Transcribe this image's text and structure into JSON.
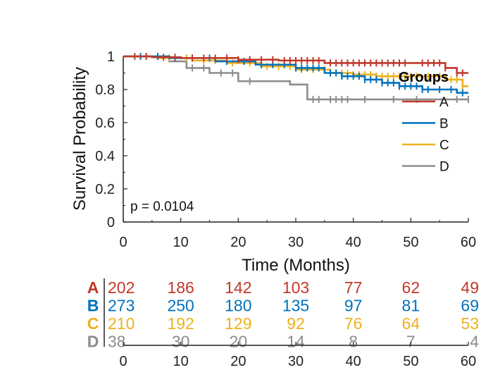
{
  "chart_data": {
    "type": "line",
    "subtype": "kaplan-meier",
    "xlabel": "Time (Months)",
    "ylabel": "Survival Probability",
    "xlim": [
      0,
      60
    ],
    "ylim": [
      0,
      1
    ],
    "xticks": [
      0,
      10,
      20,
      30,
      40,
      50,
      60
    ],
    "yticks": [
      0,
      0.2,
      0.4,
      0.6,
      0.8,
      1
    ],
    "xtick_labels": [
      "0",
      "10",
      "20",
      "30",
      "40",
      "50",
      "60"
    ],
    "ytick_labels": [
      "0",
      "0.2",
      "0.4",
      "0.6",
      "0.8",
      "1"
    ],
    "annotation": "p = 0.0104",
    "grid": false,
    "legend": {
      "title": "Groups",
      "placement": "right"
    },
    "series": [
      {
        "name": "A",
        "color": "#c0392b",
        "steps": [
          [
            0,
            1
          ],
          [
            5,
            0.995
          ],
          [
            10,
            0.99
          ],
          [
            20,
            0.98
          ],
          [
            27,
            0.975
          ],
          [
            35,
            0.96
          ],
          [
            56,
            0.93
          ],
          [
            58,
            0.9
          ]
        ],
        "end": 60,
        "censor": [
          2,
          4,
          7,
          9,
          12,
          14,
          16,
          18,
          20,
          22,
          24,
          26,
          28,
          29,
          30,
          31,
          32,
          33,
          34,
          36,
          37,
          38,
          39,
          40,
          41,
          42,
          43,
          44,
          45,
          46,
          47,
          48,
          49,
          52,
          53,
          54,
          55,
          56,
          58,
          59
        ]
      },
      {
        "name": "B",
        "color": "#0072bd",
        "steps": [
          [
            0,
            1
          ],
          [
            8,
            0.99
          ],
          [
            16,
            0.97
          ],
          [
            23,
            0.95
          ],
          [
            30,
            0.93
          ],
          [
            35,
            0.9
          ],
          [
            38,
            0.88
          ],
          [
            42,
            0.86
          ],
          [
            45,
            0.84
          ],
          [
            48,
            0.82
          ],
          [
            52,
            0.8
          ],
          [
            58,
            0.78
          ]
        ],
        "end": 60,
        "censor": [
          3,
          6,
          9,
          12,
          15,
          18,
          21,
          24,
          26,
          28,
          30,
          31,
          32,
          33,
          34,
          36,
          37,
          38,
          39,
          40,
          41,
          42,
          43,
          44,
          45,
          46,
          47,
          48,
          49,
          50,
          51,
          52,
          53,
          55,
          57,
          59
        ]
      },
      {
        "name": "C",
        "color": "#edb120",
        "steps": [
          [
            0,
            1
          ],
          [
            6,
            0.99
          ],
          [
            12,
            0.975
          ],
          [
            18,
            0.96
          ],
          [
            24,
            0.94
          ],
          [
            30,
            0.92
          ],
          [
            36,
            0.9
          ],
          [
            40,
            0.89
          ],
          [
            44,
            0.88
          ],
          [
            56,
            0.86
          ],
          [
            59,
            0.82
          ]
        ],
        "end": 60,
        "censor": [
          4,
          8,
          11,
          14,
          16,
          19,
          22,
          25,
          27,
          29,
          31,
          33,
          35,
          37,
          38,
          39,
          40,
          41,
          42,
          43,
          44,
          45,
          46,
          47,
          48,
          49,
          50,
          51,
          53,
          55,
          57,
          58,
          59
        ]
      },
      {
        "name": "D",
        "color": "#8c8c8c",
        "steps": [
          [
            0,
            1
          ],
          [
            8,
            0.97
          ],
          [
            11,
            0.93
          ],
          [
            15,
            0.9
          ],
          [
            20,
            0.85
          ],
          [
            29,
            0.83
          ],
          [
            32,
            0.74
          ]
        ],
        "end": 60,
        "censor": [
          12,
          14,
          17,
          19,
          22,
          33,
          34,
          36,
          37,
          38,
          39,
          42,
          47,
          51,
          58,
          60
        ]
      }
    ],
    "risk_table": {
      "times": [
        0,
        10,
        20,
        30,
        40,
        50,
        60
      ],
      "time_labels": [
        "0",
        "10",
        "20",
        "30",
        "40",
        "50",
        "60"
      ],
      "rows": [
        {
          "group": "A",
          "color": "#c0392b",
          "counts": [
            "202",
            "186",
            "142",
            "103",
            "77",
            "62",
            "49"
          ]
        },
        {
          "group": "B",
          "color": "#0072bd",
          "counts": [
            "273",
            "250",
            "180",
            "135",
            "97",
            "81",
            "69"
          ]
        },
        {
          "group": "C",
          "color": "#edb120",
          "counts": [
            "210",
            "192",
            "129",
            "92",
            "76",
            "64",
            "53"
          ]
        },
        {
          "group": "D",
          "color": "#8c8c8c",
          "counts": [
            "38",
            "30",
            "20",
            "14",
            "8",
            "7",
            "4"
          ]
        }
      ]
    }
  }
}
